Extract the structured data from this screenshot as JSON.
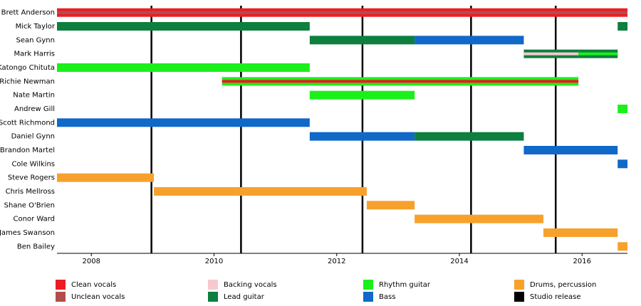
{
  "chart_data": {
    "type": "timeline",
    "xlim": [
      2007.44,
      2016.74
    ],
    "xticks": [
      2008,
      2010,
      2012,
      2014,
      2016
    ],
    "roles": [
      {
        "name": "Clean vocals",
        "color": "#ec1c24"
      },
      {
        "name": "Unclean vocals",
        "color": "#b34d4d"
      },
      {
        "name": "Backing vocals",
        "color": "#f8c8cf"
      },
      {
        "name": "Lead guitar",
        "color": "#0d7f3f"
      },
      {
        "name": "Rhythm guitar",
        "color": "#1bf01b"
      },
      {
        "name": "Bass",
        "color": "#1068c8"
      },
      {
        "name": "Drums, percussion",
        "color": "#f7a12c"
      }
    ],
    "release_label": "Studio release",
    "release_color": "#000000",
    "releases": [
      2008.98,
      2010.44,
      2012.42,
      2014.19,
      2015.57
    ],
    "members": [
      {
        "name": "Brett Anderson",
        "periods": [
          {
            "start": 2007.44,
            "end": 2016.74,
            "role": "Clean vocals",
            "stripe": "Unclean vocals"
          }
        ]
      },
      {
        "name": "Mick Taylor",
        "periods": [
          {
            "start": 2007.44,
            "end": 2011.56,
            "role": "Lead guitar"
          },
          {
            "start": 2016.58,
            "end": 2016.74,
            "role": "Lead guitar"
          }
        ]
      },
      {
        "name": "Sean Gynn",
        "periods": [
          {
            "start": 2011.56,
            "end": 2013.27,
            "role": "Lead guitar"
          },
          {
            "start": 2013.27,
            "end": 2015.05,
            "role": "Bass"
          }
        ]
      },
      {
        "name": "Mark Harris",
        "periods": [
          {
            "start": 2015.05,
            "end": 2015.94,
            "role": "Lead guitar",
            "stripe": "Backing vocals"
          },
          {
            "start": 2015.94,
            "end": 2016.58,
            "role": "Lead guitar",
            "stripe": "Rhythm guitar"
          }
        ]
      },
      {
        "name": "Katongo Chituta",
        "periods": [
          {
            "start": 2007.44,
            "end": 2011.56,
            "role": "Rhythm guitar"
          }
        ]
      },
      {
        "name": "Richie Newman",
        "periods": [
          {
            "start": 2010.13,
            "end": 2015.94,
            "role": "Rhythm guitar",
            "stripe": "Clean vocals"
          }
        ]
      },
      {
        "name": "Nate Martin",
        "periods": [
          {
            "start": 2011.56,
            "end": 2013.27,
            "role": "Rhythm guitar"
          }
        ]
      },
      {
        "name": "Andrew Gill",
        "periods": [
          {
            "start": 2016.58,
            "end": 2016.74,
            "role": "Rhythm guitar"
          }
        ]
      },
      {
        "name": "Scott Richmond",
        "periods": [
          {
            "start": 2007.44,
            "end": 2011.56,
            "role": "Bass"
          }
        ]
      },
      {
        "name": "Daniel Gynn",
        "periods": [
          {
            "start": 2011.56,
            "end": 2013.27,
            "role": "Bass"
          },
          {
            "start": 2013.27,
            "end": 2015.05,
            "role": "Lead guitar"
          }
        ]
      },
      {
        "name": "Brandon Martel",
        "periods": [
          {
            "start": 2015.05,
            "end": 2016.58,
            "role": "Bass"
          }
        ]
      },
      {
        "name": "Cole Wilkins",
        "periods": [
          {
            "start": 2016.58,
            "end": 2016.74,
            "role": "Bass"
          }
        ]
      },
      {
        "name": "Steve Rogers",
        "periods": [
          {
            "start": 2007.44,
            "end": 2009.02,
            "role": "Drums, percussion"
          }
        ]
      },
      {
        "name": "Chris Mellross",
        "periods": [
          {
            "start": 2009.02,
            "end": 2012.49,
            "role": "Drums, percussion"
          }
        ]
      },
      {
        "name": "Shane O'Brien",
        "periods": [
          {
            "start": 2012.49,
            "end": 2013.27,
            "role": "Drums, percussion"
          }
        ]
      },
      {
        "name": "Conor Ward",
        "periods": [
          {
            "start": 2013.27,
            "end": 2015.37,
            "role": "Drums, percussion"
          }
        ]
      },
      {
        "name": "James Swanson",
        "periods": [
          {
            "start": 2015.37,
            "end": 2016.58,
            "role": "Drums, percussion"
          }
        ]
      },
      {
        "name": "Ben Bailey",
        "periods": [
          {
            "start": 2016.58,
            "end": 2016.74,
            "role": "Drums, percussion"
          }
        ]
      }
    ]
  }
}
